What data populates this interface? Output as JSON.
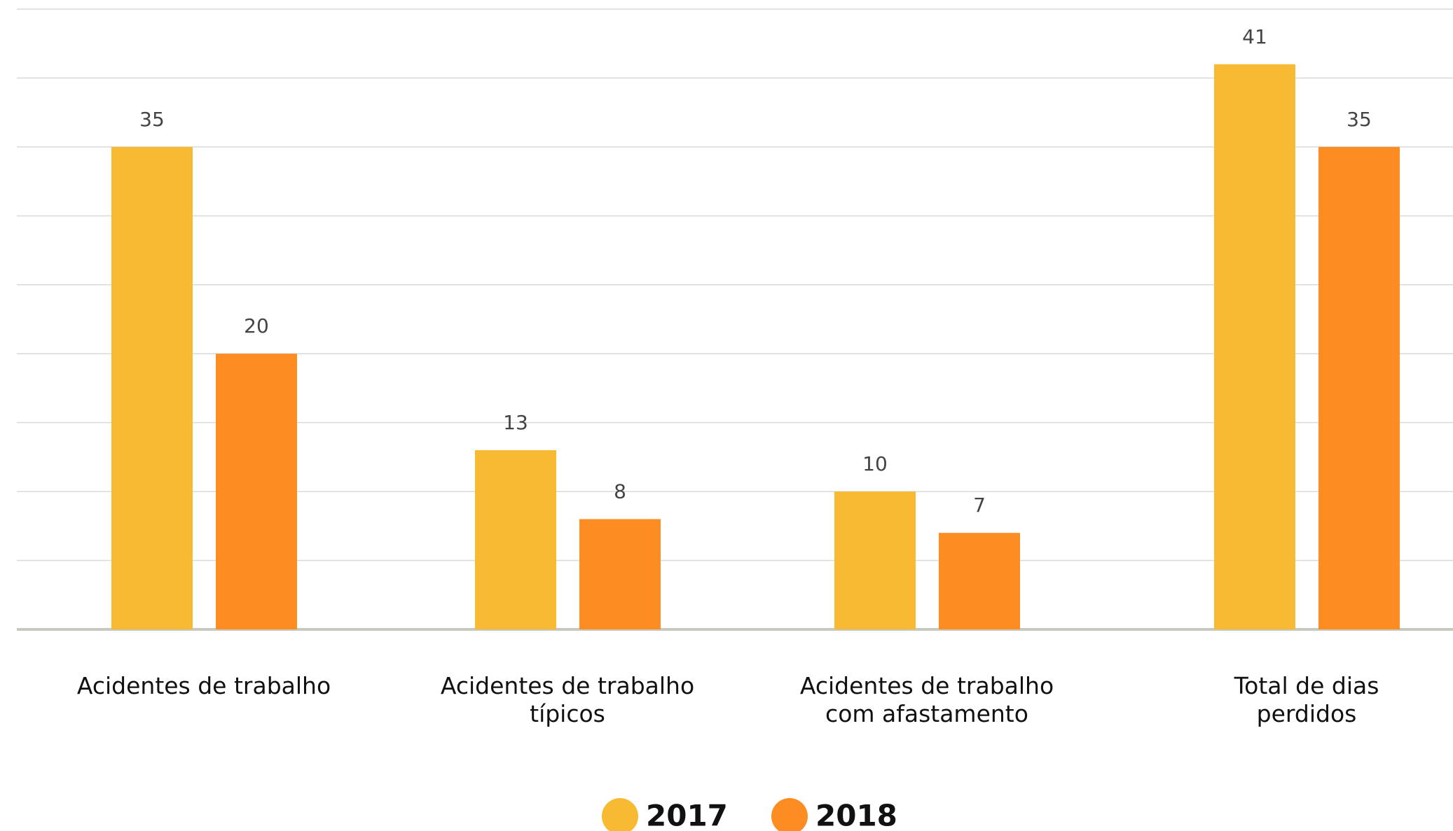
{
  "chart_data": {
    "type": "bar",
    "categories": [
      "Acidentes de trabalho",
      "Acidentes de trabalho\ntípicos",
      "Acidentes de trabalho\ncom afastamento",
      "Total de dias\nperdidos"
    ],
    "series": [
      {
        "name": "2017",
        "color": "#f8b933",
        "values": [
          35,
          13,
          10,
          41
        ]
      },
      {
        "name": "2018",
        "color": "#fd8c22",
        "values": [
          20,
          8,
          7,
          35
        ]
      }
    ],
    "ylim": [
      0,
      45
    ],
    "yticks": [
      0,
      5,
      10,
      15,
      20,
      25,
      30,
      35,
      40,
      45
    ],
    "grid": true,
    "legend": "bottom"
  }
}
